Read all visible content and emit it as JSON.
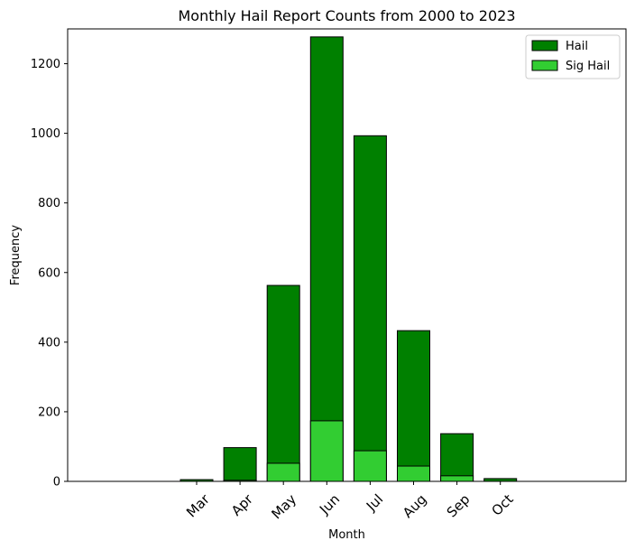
{
  "chart_data": {
    "type": "bar",
    "title": "Monthly Hail Report Counts from 2000 to 2023",
    "xlabel": "Month",
    "ylabel": "Frequency",
    "categories": [
      "Mar",
      "Apr",
      "May",
      "Jun",
      "Jul",
      "Aug",
      "Sep",
      "Oct"
    ],
    "series": [
      {
        "name": "Hail",
        "values": [
          5,
          97,
          563,
          1277,
          993,
          433,
          137,
          8
        ],
        "color": "#008000"
      },
      {
        "name": "Sig Hail",
        "values": [
          0,
          3,
          52,
          174,
          88,
          44,
          16,
          0
        ],
        "color": "#32cd32"
      }
    ],
    "ylim": [
      0,
      1300
    ],
    "yticks": [
      0,
      200,
      400,
      600,
      800,
      1000,
      1200
    ],
    "grid": false,
    "legend_position": "top-right",
    "overlay": true
  }
}
